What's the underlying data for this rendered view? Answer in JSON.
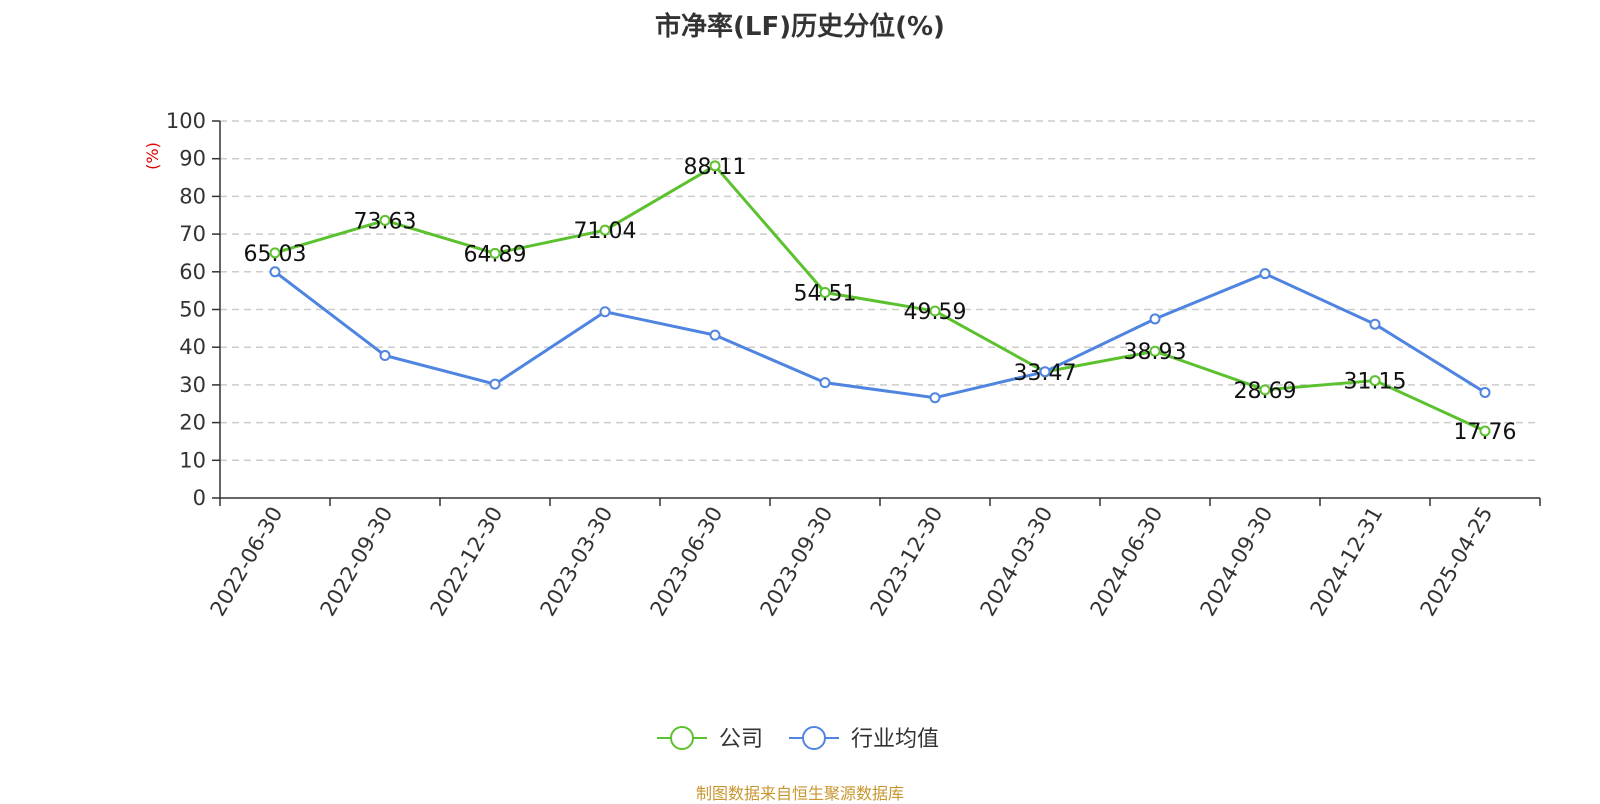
{
  "chart_data": {
    "type": "line",
    "title": "市净率(LF)历史分位(%)",
    "ylabel": "(%)",
    "ylim": [
      0,
      100
    ],
    "yticks": [
      0,
      10,
      20,
      30,
      40,
      50,
      60,
      70,
      80,
      90,
      100
    ],
    "categories": [
      "2022-06-30",
      "2022-09-30",
      "2022-12-30",
      "2023-03-30",
      "2023-06-30",
      "2023-09-30",
      "2023-12-30",
      "2024-03-30",
      "2024-06-30",
      "2024-09-30",
      "2024-12-31",
      "2025-04-25"
    ],
    "series": [
      {
        "name": "公司",
        "color": "#5cc12f",
        "values": [
          65.03,
          73.63,
          64.89,
          71.04,
          88.11,
          54.51,
          49.59,
          33.47,
          38.93,
          28.69,
          31.15,
          17.76
        ],
        "labels": [
          "65.03",
          "73.63",
          "64.89",
          "71.04",
          "88.11",
          "54.51",
          "49.59",
          "33.47",
          "38.93",
          "28.69",
          "31.15",
          "17.76"
        ]
      },
      {
        "name": "行业均值",
        "color": "#4f84e0",
        "values": [
          60.0,
          37.8,
          30.2,
          49.4,
          43.2,
          30.6,
          26.6,
          33.5,
          47.5,
          59.5,
          46.1,
          28.0
        ]
      }
    ],
    "grid": true,
    "legend_position": "bottom-center",
    "ylabel_color": "#e00000"
  },
  "source_note": "制图数据来自恒生聚源数据库"
}
